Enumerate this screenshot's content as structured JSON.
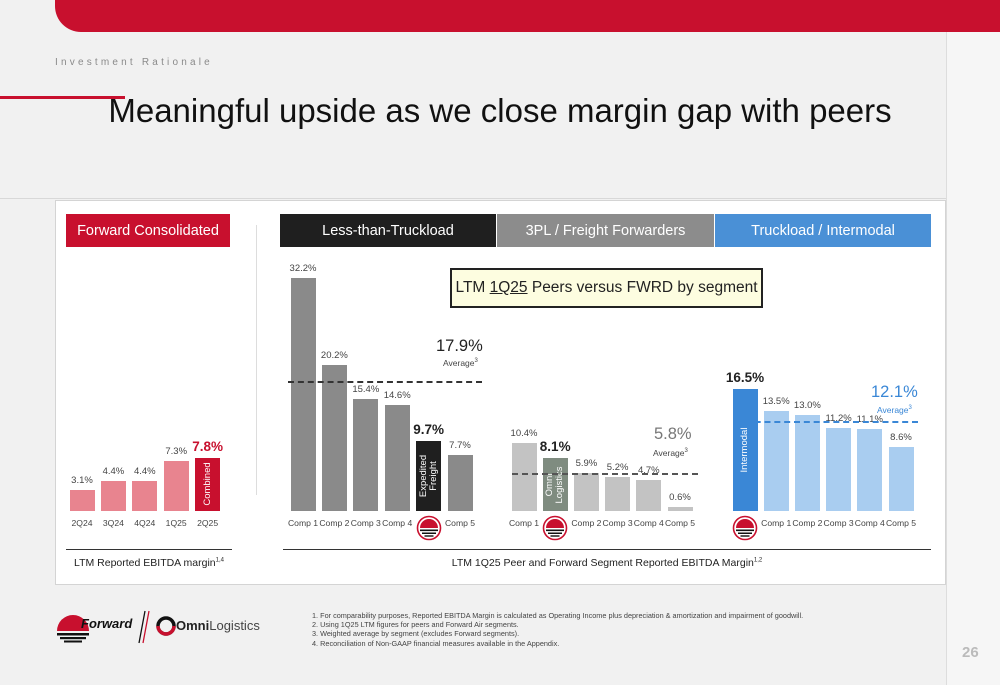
{
  "kicker": "Investment Rationale",
  "title": "Meaningful upside as we close margin gap with peers",
  "segments": {
    "forward_consolidated": "Forward Consolidated",
    "ltl": "Less-than-Truckload",
    "threepl": "3PL / Freight Forwarders",
    "truckload": "Truckload / Intermodal"
  },
  "callout": {
    "prefix": "LTM ",
    "underlined": "1Q25",
    "suffix": " Peers versus FWRD by segment"
  },
  "colors": {
    "red": "#c8102e",
    "pink": "#e8848f",
    "ltl_dark": "#1f1f1f",
    "ltl_bar": "#8a8a8a",
    "threepl_header": "#8c8c8c",
    "threepl_bar": "#c3c3c3",
    "threepl_fwrd": "#7f8c80",
    "tl_header": "#4a90d6",
    "tl_bar": "#a9cdf0",
    "tl_fwrd": "#3a87d6",
    "avg_blue": "#3a87d6"
  },
  "chart_data": [
    {
      "type": "bar",
      "title": "Forward Consolidated",
      "categories": [
        "2Q24",
        "3Q24",
        "4Q24",
        "1Q25",
        "2Q25"
      ],
      "values": [
        3.1,
        4.4,
        4.4,
        7.3,
        7.8
      ],
      "labels": [
        "3.1%",
        "4.4%",
        "4.4%",
        "7.3%",
        "7.8%"
      ],
      "highlight_label": "Combined",
      "xlabel": "LTM Reported EBITDA margin",
      "xlabel_sup": "1,4"
    },
    {
      "type": "bar",
      "title": "Less-than-Truckload",
      "categories": [
        "Comp 1",
        "Comp 2",
        "Comp 3",
        "Comp 4",
        "",
        "Comp 5"
      ],
      "values": [
        32.2,
        20.2,
        15.4,
        14.6,
        9.7,
        7.7
      ],
      "labels": [
        "32.2%",
        "20.2%",
        "15.4%",
        "14.6%",
        "9.7%",
        "7.7%"
      ],
      "fwrd_label": "Expedited Freight",
      "average": {
        "value": 17.9,
        "label": "17.9%",
        "text": "Average",
        "sup": "3"
      }
    },
    {
      "type": "bar",
      "title": "3PL / Freight Forwarders",
      "categories": [
        "Comp 1",
        "",
        "Comp 2",
        "Comp 3",
        "Comp 4",
        "Comp 5"
      ],
      "values": [
        10.4,
        8.1,
        5.9,
        5.2,
        4.7,
        0.6
      ],
      "labels": [
        "10.4%",
        "8.1%",
        "5.9%",
        "5.2%",
        "4.7%",
        "0.6%"
      ],
      "fwrd_label": "Omni Logistics",
      "average": {
        "value": 5.8,
        "label": "5.8%",
        "text": "Average",
        "sup": "3"
      }
    },
    {
      "type": "bar",
      "title": "Truckload / Intermodal",
      "categories": [
        "",
        "Comp 1",
        "Comp 2",
        "Comp 3",
        "Comp 4",
        "Comp 5"
      ],
      "values": [
        16.5,
        13.5,
        13.0,
        11.2,
        11.1,
        8.6
      ],
      "labels": [
        "16.5%",
        "13.5%",
        "13.0%",
        "11.2%",
        "11.1%",
        "8.6%"
      ],
      "fwrd_label": "Intermodal",
      "average": {
        "value": 12.1,
        "label": "12.1%",
        "text": "Average",
        "sup": "3"
      }
    }
  ],
  "peer_caption": "LTM 1Q25 Peer and Forward Segment Reported EBITDA Margin",
  "peer_caption_sup": "1,2",
  "brand": {
    "forward": "Forward",
    "omni_bold": "Omni",
    "omni_light": "Logistics"
  },
  "footnotes": [
    "1.  For comparability purposes, Reported EBITDA Margin is calculated as Operating Income plus depreciation & amortization and impairment of goodwill.",
    "2.  Using 1Q25 LTM figures for peers and Forward Air segments.",
    "3.  Weighted average by segment (excludes Forward segments).",
    "4.  Reconciliation of Non-GAAP financial measures available in the Appendix."
  ],
  "page_number": "26"
}
